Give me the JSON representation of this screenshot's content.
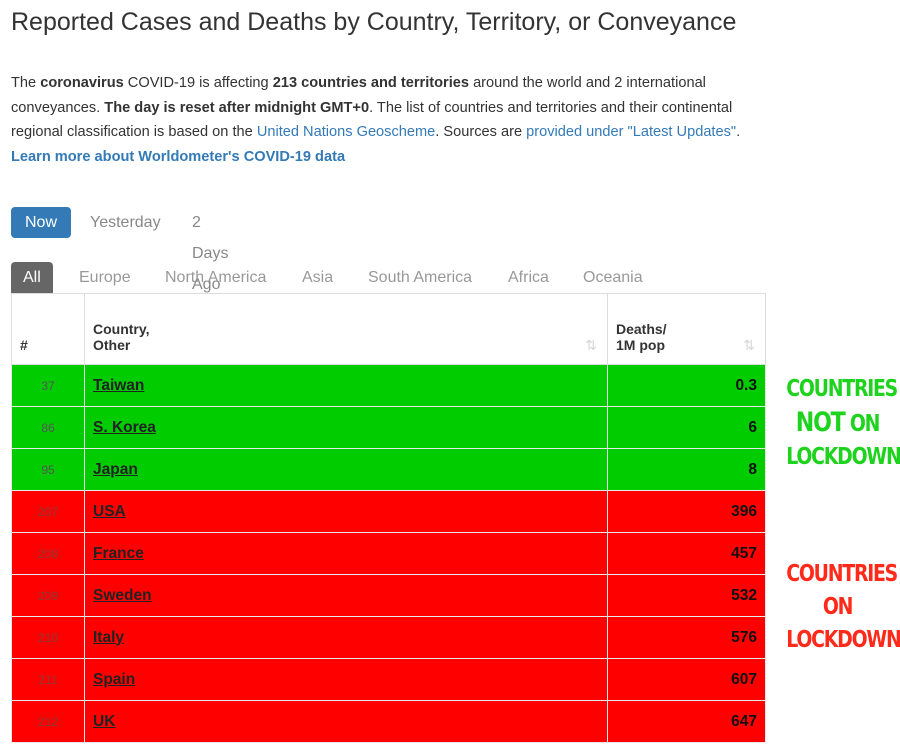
{
  "page": {
    "title": "Reported Cases and Deaths by Country, Territory, or Conveyance"
  },
  "intro": {
    "t1": "The ",
    "b1": "coronavirus",
    "t2": " COVID-19 is affecting ",
    "b2": "213 countries and territories",
    "t3": " around the world and 2 international conveyances. ",
    "b3": "The day is reset after midnight GMT+0",
    "t4": ". The list of countries and territories and their continental regional classification is based on the ",
    "link1": "United Nations Geoscheme",
    "t5": ". Sources are ",
    "link2": "provided under \"Latest Updates\"",
    "t6": ".",
    "learn_more": "Learn more about Worldometer's COVID-19 data"
  },
  "day_tabs": [
    "Now",
    "Yesterday",
    "2 Days Ago"
  ],
  "region_tabs": [
    "All",
    "Europe",
    "North America",
    "Asia",
    "South America",
    "Africa",
    "Oceania"
  ],
  "table": {
    "headers": {
      "num": "#",
      "country_l1": "Country,",
      "country_l2": "Other",
      "deaths_l1": "Deaths/",
      "deaths_l2": "1M pop",
      "sort_glyph": "⇅"
    },
    "rows": [
      {
        "rank": "37",
        "country": "Taiwan",
        "value": "0.3",
        "group": "green"
      },
      {
        "rank": "86",
        "country": "S. Korea",
        "value": "6",
        "group": "green"
      },
      {
        "rank": "95",
        "country": "Japan",
        "value": "8",
        "group": "green"
      },
      {
        "rank": "207",
        "country": "USA",
        "value": "396",
        "group": "red"
      },
      {
        "rank": "208",
        "country": "France",
        "value": "457",
        "group": "red"
      },
      {
        "rank": "209",
        "country": "Sweden",
        "value": "532",
        "group": "red"
      },
      {
        "rank": "210",
        "country": "Italy",
        "value": "576",
        "group": "red"
      },
      {
        "rank": "211",
        "country": "Spain",
        "value": "607",
        "group": "red"
      },
      {
        "rank": "212",
        "country": "UK",
        "value": "647",
        "group": "red"
      }
    ]
  },
  "annotations": {
    "not_lockdown": {
      "line1": "COUNTRIES",
      "line2": "NOT",
      "line2b": " ON",
      "line3": "LOCKDOWN",
      "color": "#1ed31e"
    },
    "lockdown": {
      "line1": "COUNTRIES",
      "line2": "ON",
      "line3": "LOCKDOWN",
      "color": "#ff2a1a"
    }
  },
  "colors": {
    "accent": "#337ab7",
    "row_green": "#00cc00",
    "row_red": "#ff0000"
  }
}
